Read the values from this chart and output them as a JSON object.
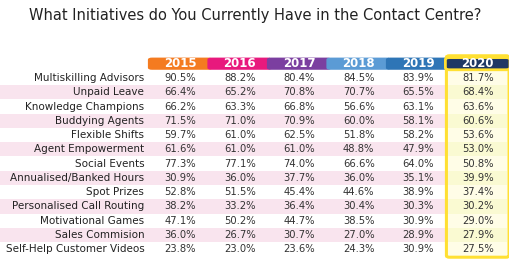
{
  "title": "What Initiatives do You Currently Have in the Contact Centre?",
  "columns": [
    "2015",
    "2016",
    "2017",
    "2018",
    "2019",
    "2020"
  ],
  "col_colors": [
    "#F47B20",
    "#E8197D",
    "#7B3FA0",
    "#5B9BD5",
    "#2E75B6",
    "#1F3864"
  ],
  "rows": [
    "Multiskilling Advisors",
    "Unpaid Leave",
    "Knowledge Champions",
    "Buddying Agents",
    "Flexible Shifts",
    "Agent Empowerment",
    "Social Events",
    "Annualised/Banked Hours",
    "Spot Prizes",
    "Personalised Call Routing",
    "Motivational Games",
    "Sales Commision",
    "Self-Help Customer Videos"
  ],
  "data": [
    [
      "90.5%",
      "88.2%",
      "80.4%",
      "84.5%",
      "83.9%",
      "81.7%"
    ],
    [
      "66.4%",
      "65.2%",
      "70.8%",
      "70.7%",
      "65.5%",
      "68.4%"
    ],
    [
      "66.2%",
      "63.3%",
      "66.8%",
      "56.6%",
      "63.1%",
      "63.6%"
    ],
    [
      "71.5%",
      "71.0%",
      "70.9%",
      "60.0%",
      "58.1%",
      "60.6%"
    ],
    [
      "59.7%",
      "61.0%",
      "62.5%",
      "51.8%",
      "58.2%",
      "53.6%"
    ],
    [
      "61.6%",
      "61.0%",
      "61.0%",
      "48.8%",
      "47.9%",
      "53.0%"
    ],
    [
      "77.3%",
      "77.1%",
      "74.0%",
      "66.6%",
      "64.0%",
      "50.8%"
    ],
    [
      "30.9%",
      "36.0%",
      "37.7%",
      "36.0%",
      "35.1%",
      "39.9%"
    ],
    [
      "52.8%",
      "51.5%",
      "45.4%",
      "44.6%",
      "38.9%",
      "37.4%"
    ],
    [
      "38.2%",
      "33.2%",
      "36.4%",
      "30.4%",
      "30.3%",
      "30.2%"
    ],
    [
      "47.1%",
      "50.2%",
      "44.7%",
      "38.5%",
      "30.9%",
      "29.0%"
    ],
    [
      "36.0%",
      "26.7%",
      "30.7%",
      "27.0%",
      "28.9%",
      "27.9%"
    ],
    [
      "23.8%",
      "23.0%",
      "23.6%",
      "24.3%",
      "30.9%",
      "27.5%"
    ]
  ],
  "row_color_white": "#FFFFFF",
  "row_color_pink": "#F9E4EE",
  "row_color_light_pink": "#FDF0F6",
  "last_col_bg": "#FFFDE7",
  "last_col_bg_alt": "#FAFAD2",
  "yellow_border": "#FFE033",
  "background_color": "#FFFFFF",
  "title_fontsize": 10.5,
  "cell_fontsize": 7.2,
  "row_label_fontsize": 7.5,
  "header_fontsize": 8.5
}
